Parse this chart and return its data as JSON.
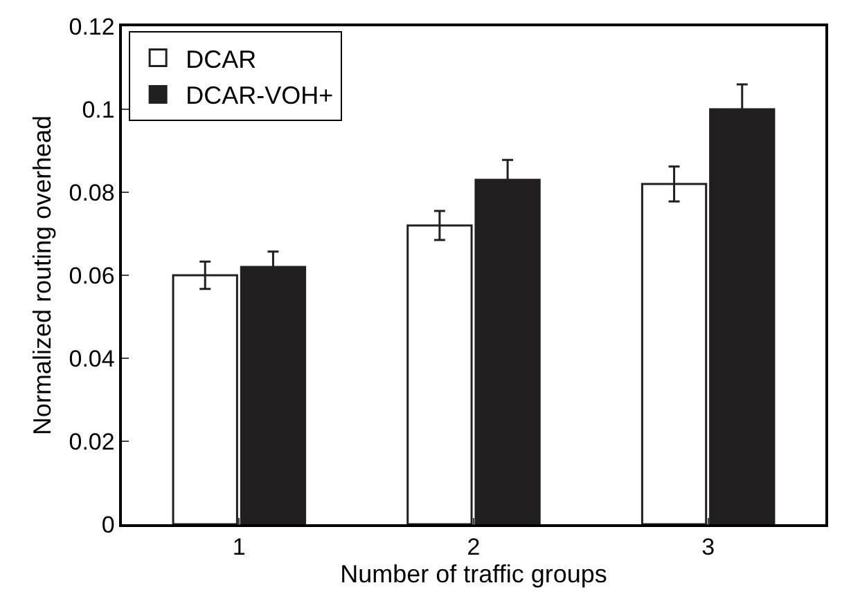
{
  "chart_data": {
    "type": "bar",
    "xlabel": "Number of traffic groups",
    "ylabel": "Normalized routing overhead",
    "categories": [
      "1",
      "2",
      "3"
    ],
    "series": [
      {
        "name": "DCAR",
        "color": "#ffffff",
        "values": [
          0.06,
          0.072,
          0.082
        ],
        "errors": [
          0.0033,
          0.0035,
          0.0042
        ]
      },
      {
        "name": "DCAR-VOH+",
        "color": "#231f20",
        "values": [
          0.062,
          0.083,
          0.1
        ],
        "errors": [
          0.0037,
          0.0048,
          0.006
        ]
      }
    ],
    "ylim": [
      0,
      0.12
    ],
    "yticks": [
      {
        "value": 0,
        "label": "0"
      },
      0.02,
      0.04,
      0.06,
      0.08,
      {
        "value": 0.1,
        "label": "0.1"
      },
      0.12
    ],
    "legend": "top left"
  }
}
